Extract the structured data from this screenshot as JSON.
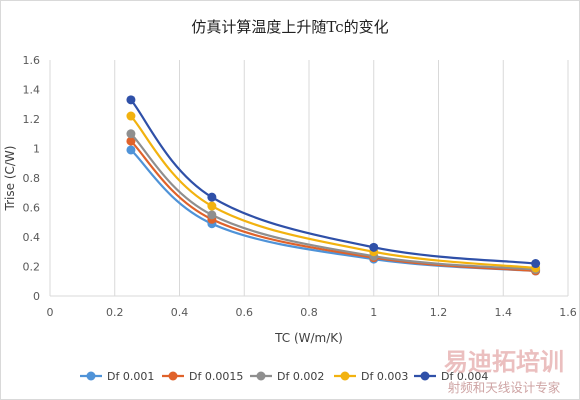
{
  "chart_data": {
    "type": "line",
    "title": "仿真计算温度上升随Tc的变化",
    "xlabel": "TC (W/m/K)",
    "ylabel": "Trise (C/W)",
    "xlim": [
      0,
      1.6
    ],
    "ylim": [
      0,
      1.6
    ],
    "xticks": [
      "0",
      "0.2",
      "0.4",
      "0.6",
      "0.8",
      "1",
      "1.2",
      "1.4",
      "1.6"
    ],
    "yticks": [
      "0",
      "0.2",
      "0.4",
      "0.6",
      "0.8",
      "1",
      "1.2",
      "1.4",
      "1.6"
    ],
    "grid": "vertical",
    "legend_position": "bottom",
    "x": [
      0.25,
      0.5,
      1.0,
      1.5
    ],
    "series": [
      {
        "name": "Df 0.001",
        "color": "#4f93d8",
        "values": [
          0.99,
          0.49,
          0.25,
          0.17
        ]
      },
      {
        "name": "Df 0.0015",
        "color": "#e0622a",
        "values": [
          1.05,
          0.52,
          0.26,
          0.17
        ]
      },
      {
        "name": "Df 0.002",
        "color": "#8f8f8f",
        "values": [
          1.1,
          0.55,
          0.27,
          0.18
        ]
      },
      {
        "name": "Df 0.003",
        "color": "#f2b20f",
        "values": [
          1.22,
          0.61,
          0.3,
          0.19
        ]
      },
      {
        "name": "Df 0.004",
        "color": "#2f50a8",
        "values": [
          1.33,
          0.67,
          0.33,
          0.22
        ]
      }
    ]
  },
  "watermark": {
    "main": "易迪拓培训",
    "sub": "射频和天线设计专家"
  }
}
